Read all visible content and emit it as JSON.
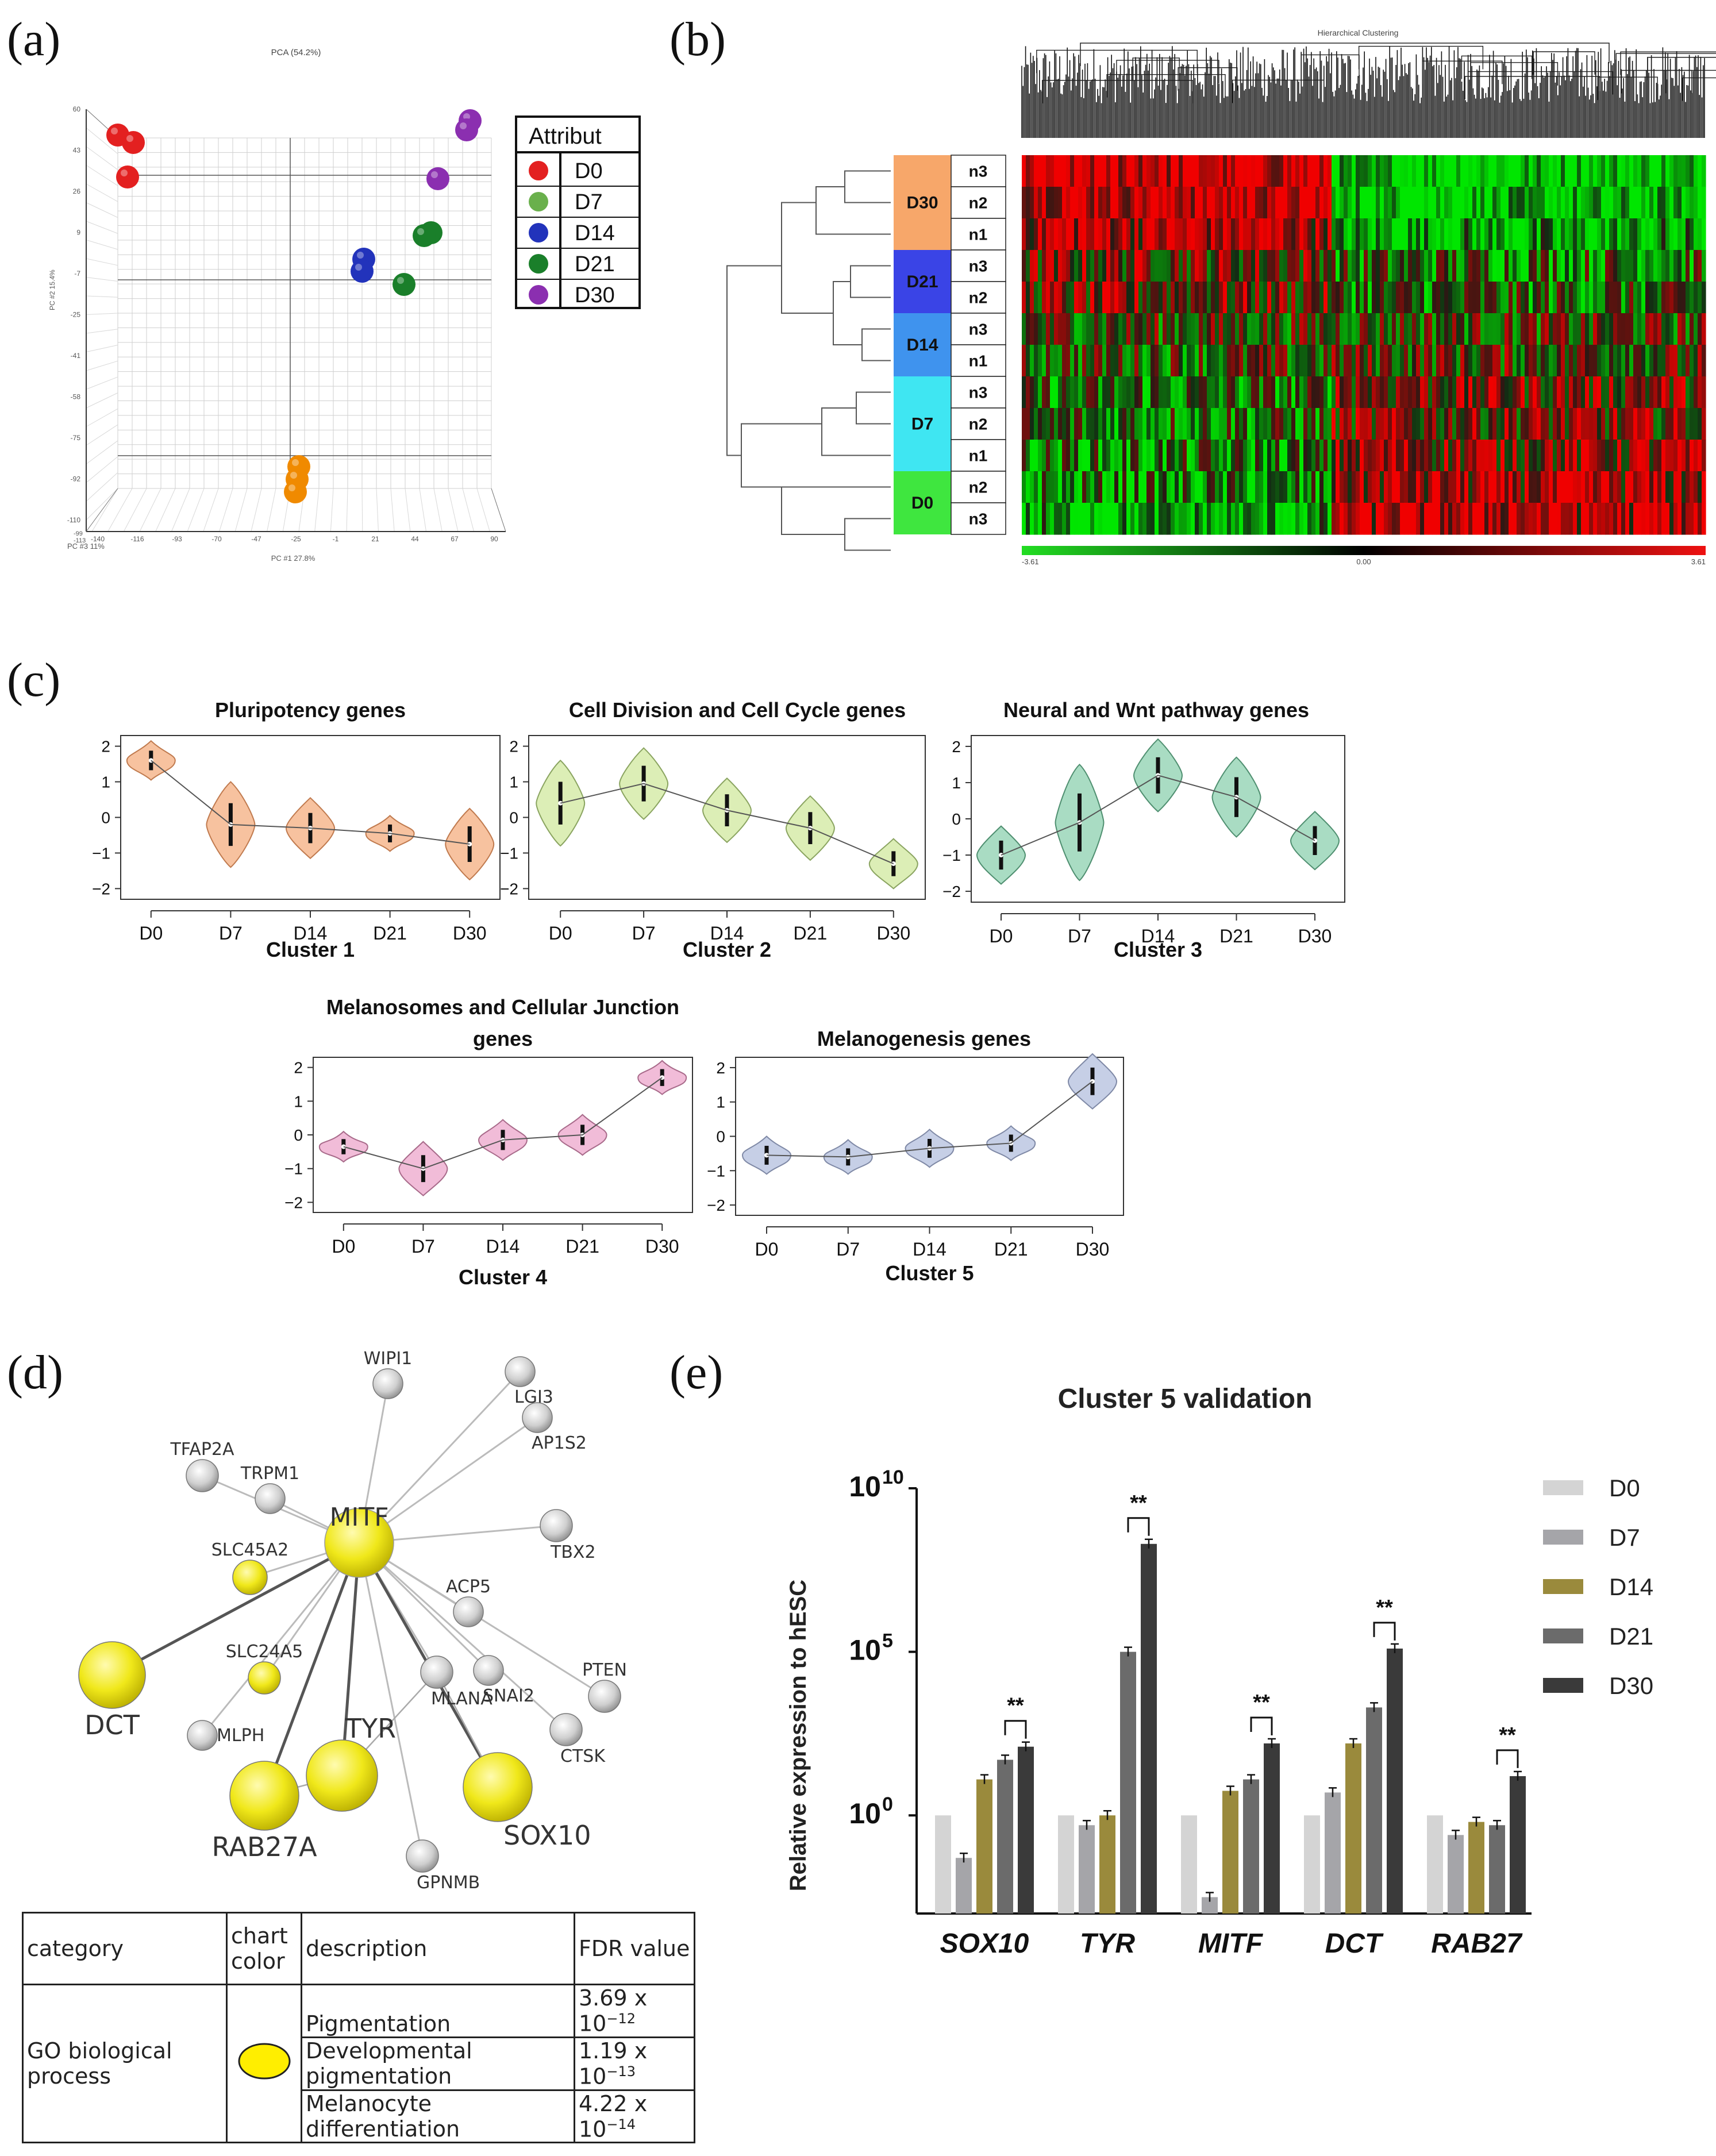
{
  "panels": {
    "a": "(a)",
    "b": "(b)",
    "c": "(c)",
    "d": "(d)",
    "e": "(e)"
  },
  "pca": {
    "title": "PCA (54.2%)",
    "x_label": "PC #1 27.8%",
    "y_label": "PC #2 15.4%",
    "z_label": "PC #3 11%",
    "legend_title": "Attribut",
    "legend": [
      {
        "label": "D0",
        "color": "#e32020"
      },
      {
        "label": "D7",
        "color": "#6ab04c"
      },
      {
        "label": "D14",
        "color": "#2233bb"
      },
      {
        "label": "D21",
        "color": "#1a7f2a"
      },
      {
        "label": "D30",
        "color": "#8b2fb0"
      }
    ],
    "y_ticks": [
      "60",
      "43",
      "26",
      "9",
      "-7",
      "-25",
      "-41",
      "-58",
      "-75",
      "-92",
      "-110"
    ],
    "x_ticks": [
      "-140",
      "-116",
      "-93",
      "-70",
      "-47",
      "-25",
      "-1",
      "21",
      "44",
      "67",
      "90"
    ],
    "z_ticks": [
      "-99",
      "-113"
    ],
    "points": [
      {
        "group": "D0",
        "color": "#e32020"
      },
      {
        "group": "D0",
        "color": "#e32020"
      },
      {
        "group": "D0",
        "color": "#e32020"
      },
      {
        "group": "D30",
        "color": "#8b2fb0"
      },
      {
        "group": "D30",
        "color": "#8b2fb0"
      },
      {
        "group": "D30",
        "color": "#8b2fb0"
      },
      {
        "group": "D21",
        "color": "#1a7f2a"
      },
      {
        "group": "D21",
        "color": "#1a7f2a"
      },
      {
        "group": "D21",
        "color": "#1a7f2a"
      },
      {
        "group": "D14",
        "color": "#2233bb"
      },
      {
        "group": "D14",
        "color": "#2233bb"
      },
      {
        "group": "D7",
        "color": "#f08a00"
      },
      {
        "group": "D7",
        "color": "#f08a00"
      },
      {
        "group": "D7",
        "color": "#f08a00"
      }
    ]
  },
  "heatmap": {
    "title": "Hierarchical Clustering",
    "groups": [
      {
        "label": "D30",
        "color": "#f7a76a",
        "samples": [
          "n3",
          "n2",
          "n1"
        ]
      },
      {
        "label": "D21",
        "color": "#3a44e6",
        "samples": [
          "n3",
          "n2"
        ]
      },
      {
        "label": "D14",
        "color": "#3f93ee",
        "samples": [
          "n3",
          "n1"
        ]
      },
      {
        "label": "D7",
        "color": "#3fe6f2",
        "samples": [
          "n3",
          "n2",
          "n1"
        ]
      },
      {
        "label": "D0",
        "color": "#3fe63f",
        "samples": [
          "n2",
          "n3"
        ]
      }
    ],
    "scale_min": "-3.61",
    "scale_mid": "0.00",
    "scale_max": "3.61"
  },
  "violins": [
    {
      "title": "Pluripotency genes",
      "cluster": "Cluster 1",
      "color": "#f7c29f",
      "edge": "#c07a4e",
      "categories": [
        "D0",
        "D7",
        "D14",
        "D21",
        "D30"
      ],
      "medians": [
        1.6,
        -0.2,
        -0.3,
        -0.45,
        -0.75
      ],
      "spreads": [
        0.55,
        1.2,
        0.85,
        0.5,
        1.0
      ],
      "yticks": [
        2,
        1,
        0,
        -1,
        -2
      ]
    },
    {
      "title": "Cell Division and Cell Cycle genes",
      "cluster": "Cluster 2",
      "color": "#dceeb6",
      "edge": "#8aa460",
      "categories": [
        "D0",
        "D7",
        "D14",
        "D21",
        "D30"
      ],
      "medians": [
        0.4,
        0.95,
        0.2,
        -0.3,
        -1.3
      ],
      "spreads": [
        1.2,
        1.0,
        0.9,
        0.9,
        0.7
      ],
      "yticks": [
        2,
        1,
        0,
        -1,
        -2
      ]
    },
    {
      "title": "Neural and Wnt pathway  genes",
      "cluster": "Cluster 3",
      "color": "#a9dcc3",
      "edge": "#4f8f70",
      "categories": [
        "D0",
        "D7",
        "D14",
        "D21",
        "D30"
      ],
      "medians": [
        -1.0,
        -0.1,
        1.2,
        0.6,
        -0.6
      ],
      "spreads": [
        0.8,
        1.6,
        1.0,
        1.1,
        0.8
      ],
      "yticks": [
        2,
        1,
        0,
        -1,
        -2
      ]
    },
    {
      "title": "Melanosomes and Cellular Junction",
      "title2": "genes",
      "cluster": "Cluster 4",
      "color": "#f1bcd8",
      "edge": "#a86a8a",
      "categories": [
        "D0",
        "D7",
        "D14",
        "D21",
        "D30"
      ],
      "medians": [
        -0.35,
        -1.0,
        -0.15,
        0.0,
        1.7
      ],
      "spreads": [
        0.45,
        0.8,
        0.6,
        0.6,
        0.5
      ],
      "yticks": [
        2,
        1,
        0,
        -1,
        -2
      ]
    },
    {
      "title": "Melanogenesis genes",
      "cluster": "Cluster 5",
      "color": "#c6cfe6",
      "edge": "#7f89a6",
      "categories": [
        "D0",
        "D7",
        "D14",
        "D21",
        "D30"
      ],
      "medians": [
        -0.55,
        -0.6,
        -0.35,
        -0.2,
        1.6
      ],
      "spreads": [
        0.55,
        0.5,
        0.55,
        0.5,
        0.8
      ],
      "yticks": [
        2,
        1,
        0,
        -1,
        -2
      ]
    }
  ],
  "network": {
    "hub": "MITF",
    "nodes": [
      {
        "name": "WIPI1",
        "kind": "grey"
      },
      {
        "name": "LGI3",
        "kind": "grey"
      },
      {
        "name": "AP1S2",
        "kind": "grey"
      },
      {
        "name": "TFAP2A",
        "kind": "grey"
      },
      {
        "name": "TRPM1",
        "kind": "grey"
      },
      {
        "name": "TBX2",
        "kind": "grey"
      },
      {
        "name": "SLC45A2",
        "kind": "yellow"
      },
      {
        "name": "ACP5",
        "kind": "grey"
      },
      {
        "name": "SLC24A5",
        "kind": "yellow"
      },
      {
        "name": "MLANA",
        "kind": "grey"
      },
      {
        "name": "SNAI2",
        "kind": "grey"
      },
      {
        "name": "PTEN",
        "kind": "grey"
      },
      {
        "name": "DCT",
        "kind": "yellow"
      },
      {
        "name": "MLPH",
        "kind": "grey"
      },
      {
        "name": "TYR",
        "kind": "yellow"
      },
      {
        "name": "CTSK",
        "kind": "grey"
      },
      {
        "name": "RAB27A",
        "kind": "yellow"
      },
      {
        "name": "SOX10",
        "kind": "yellow"
      },
      {
        "name": "GPNMB",
        "kind": "grey"
      }
    ]
  },
  "go_table": {
    "headers": {
      "category": "category",
      "chart_color": "chart color",
      "description": "description",
      "fdr": "FDR value"
    },
    "category": "GO biological process",
    "chart_color": "#ffee00",
    "rows": [
      {
        "description": "Pigmentation",
        "fdr_base": "3.69 x 10",
        "fdr_exp": "−12"
      },
      {
        "description": "Developmental pigmentation",
        "fdr_base": "1.19 x 10",
        "fdr_exp": "−13"
      },
      {
        "description": "Melanocyte differentiation",
        "fdr_base": "4.22 x 10",
        "fdr_exp": "−14"
      }
    ]
  },
  "chart_data": {
    "type": "bar",
    "title": "Cluster 5 validation",
    "ylabel": "Relative expression to hESC",
    "yscale": "log",
    "ylim": [
      -3,
      10
    ],
    "yticks": [
      {
        "base": "10",
        "exp": "0",
        "value": 0
      },
      {
        "base": "10",
        "exp": "5",
        "value": 5
      },
      {
        "base": "10",
        "exp": "10",
        "value": 10
      }
    ],
    "categories": [
      "SOX10",
      "TYR",
      "MITF",
      "DCT",
      "RAB27"
    ],
    "series": [
      {
        "name": "D0",
        "color": "#d4d4d4",
        "values": [
          0,
          0,
          0,
          0,
          0
        ]
      },
      {
        "name": "D7",
        "color": "#a5a5a9",
        "values": [
          -1.3,
          -0.3,
          -2.5,
          0.7,
          -0.6
        ]
      },
      {
        "name": "D14",
        "color": "#9a8a3c",
        "values": [
          1.1,
          0.0,
          0.75,
          2.2,
          -0.2
        ]
      },
      {
        "name": "D21",
        "color": "#6b6b6b",
        "values": [
          1.7,
          5.0,
          1.1,
          3.3,
          -0.3
        ]
      },
      {
        "name": "D30",
        "color": "#3a3a3a",
        "values": [
          2.1,
          8.3,
          2.2,
          5.1,
          1.2
        ]
      }
    ],
    "significance": [
      {
        "category": "SOX10",
        "label": "**"
      },
      {
        "category": "TYR",
        "label": "**"
      },
      {
        "category": "MITF",
        "label": "**"
      },
      {
        "category": "DCT",
        "label": "**"
      },
      {
        "category": "RAB27",
        "label": "**"
      }
    ]
  }
}
